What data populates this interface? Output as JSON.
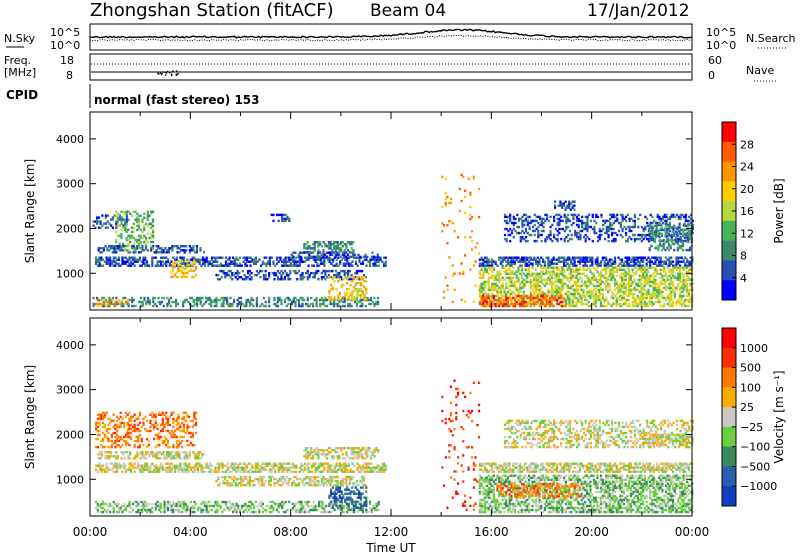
{
  "header": {
    "station": "Zhongshan Station (fitACF)",
    "beam": "Beam 04",
    "date": "17/Jan/2012"
  },
  "noise_panel": {
    "left_label": "N.Sky",
    "right_label": "N.Search",
    "scale_top": "10^5",
    "scale_bottom": "10^0"
  },
  "freq_panel": {
    "left_label_1": "Freq.",
    "left_label_2": "[MHz]",
    "left_tick_top": "18",
    "left_tick_bottom": "8",
    "right_tick_top": "60",
    "right_tick_bottom": "0",
    "right_label": "Nave"
  },
  "cpid": {
    "label": "CPID",
    "value": "normal (fast stereo) 153"
  },
  "colors": {
    "power_scale": [
      "#0000ff",
      "#2851b8",
      "#3a8a6a",
      "#49b35a",
      "#b7d640",
      "#ffcc00",
      "#ff9500",
      "#ff5a00",
      "#ff0000"
    ],
    "velocity_scale": [
      "#1040c0",
      "#2a5fb0",
      "#3a8a60",
      "#6ad040",
      "#c8c8c0",
      "#ffaa00",
      "#ff7a00",
      "#ff3000",
      "#ff0000"
    ]
  },
  "chart_data": [
    {
      "type": "heatmap",
      "name": "power",
      "ylabel": "Slant Range [km]",
      "ylim": [
        180,
        4600
      ],
      "yticks": [
        1000,
        2000,
        3000,
        4000
      ],
      "xlim": [
        0,
        24
      ],
      "colorbar_label": "Power [dB]",
      "colorbar_ticks": [
        "4",
        "8",
        "12",
        "16",
        "20",
        "24",
        "28"
      ],
      "colorbar_range": [
        0,
        32
      ],
      "bands": [
        {
          "t0": 0.2,
          "t1": 11.8,
          "r0": 1150,
          "r1": 1350,
          "level": 1,
          "density": 0.55
        },
        {
          "t0": 0.3,
          "t1": 4.5,
          "r0": 1450,
          "r1": 1600,
          "level": 1,
          "density": 0.5
        },
        {
          "t0": 0.1,
          "t1": 1.5,
          "r0": 2000,
          "r1": 2300,
          "level": 1,
          "density": 0.35
        },
        {
          "t0": 1.0,
          "t1": 2.5,
          "r0": 1500,
          "r1": 2400,
          "level": 3,
          "density": 0.35
        },
        {
          "t0": 3.2,
          "t1": 4.2,
          "r0": 900,
          "r1": 1300,
          "level": 5,
          "density": 0.4
        },
        {
          "t0": 0.1,
          "t1": 11.5,
          "r0": 250,
          "r1": 450,
          "level": 2,
          "density": 0.4
        },
        {
          "t0": 0.2,
          "t1": 1.5,
          "r0": 250,
          "r1": 400,
          "level": 6,
          "density": 0.4
        },
        {
          "t0": 5.0,
          "t1": 11.0,
          "r0": 850,
          "r1": 1050,
          "level": 1,
          "density": 0.45
        },
        {
          "t0": 8.5,
          "t1": 10.5,
          "r0": 1450,
          "r1": 1700,
          "level": 2,
          "density": 0.5
        },
        {
          "t0": 8.0,
          "t1": 11.5,
          "r0": 1350,
          "r1": 1450,
          "level": 1,
          "density": 0.45
        },
        {
          "t0": 7.2,
          "t1": 8.0,
          "r0": 2150,
          "r1": 2300,
          "level": 1,
          "density": 0.45
        },
        {
          "t0": 9.5,
          "t1": 11.0,
          "r0": 400,
          "r1": 900,
          "level": 5,
          "density": 0.35
        },
        {
          "t0": 15.5,
          "t1": 24.0,
          "r0": 1150,
          "r1": 1350,
          "level": 1,
          "density": 0.6
        },
        {
          "t0": 15.5,
          "t1": 24.0,
          "r0": 250,
          "r1": 1150,
          "level": 4,
          "density": 0.55
        },
        {
          "t0": 15.5,
          "t1": 19.0,
          "r0": 250,
          "r1": 500,
          "level": 7,
          "density": 0.5
        },
        {
          "t0": 16.5,
          "t1": 24.0,
          "r0": 1700,
          "r1": 2300,
          "level": 1,
          "density": 0.35
        },
        {
          "t0": 18.5,
          "t1": 19.3,
          "r0": 2400,
          "r1": 2600,
          "level": 1,
          "density": 0.5
        },
        {
          "t0": 22.2,
          "t1": 24.0,
          "r0": 1500,
          "r1": 2100,
          "level": 2,
          "density": 0.4
        },
        {
          "t0": 14.0,
          "t1": 15.5,
          "r0": 300,
          "r1": 3200,
          "level": 6,
          "density": 0.05
        }
      ]
    },
    {
      "type": "heatmap",
      "name": "velocity",
      "ylabel": "Slant Range [km]",
      "xlabel": "Time UT",
      "ylim": [
        180,
        4600
      ],
      "yticks": [
        1000,
        2000,
        3000,
        4000
      ],
      "xlim": [
        0,
        24
      ],
      "xticks": [
        "00:00",
        "04:00",
        "08:00",
        "12:00",
        "16:00",
        "20:00",
        "00:00"
      ],
      "colorbar_label": "Velocity [m s⁻¹]",
      "colorbar_ticks": [
        "1000",
        "500",
        "100",
        "25",
        "−25",
        "−100",
        "−500",
        "−1000"
      ],
      "bands": [
        {
          "t0": 0.2,
          "t1": 11.8,
          "r0": 1150,
          "r1": 1350,
          "level": 4,
          "density": 0.6
        },
        {
          "t0": 0.3,
          "t1": 4.5,
          "r0": 1450,
          "r1": 1600,
          "level": 4,
          "density": 0.55
        },
        {
          "t0": 0.2,
          "t1": 4.2,
          "r0": 1700,
          "r1": 2500,
          "level": 6,
          "density": 0.35
        },
        {
          "t0": 0.2,
          "t1": 11.5,
          "r0": 250,
          "r1": 500,
          "level": 3,
          "density": 0.45
        },
        {
          "t0": 5.0,
          "t1": 11.0,
          "r0": 850,
          "r1": 1050,
          "level": 4,
          "density": 0.5
        },
        {
          "t0": 8.5,
          "t1": 11.5,
          "r0": 1450,
          "r1": 1700,
          "level": 4,
          "density": 0.55
        },
        {
          "t0": 9.5,
          "t1": 11.0,
          "r0": 300,
          "r1": 800,
          "level": 1,
          "density": 0.4
        },
        {
          "t0": 15.5,
          "t1": 24.0,
          "r0": 1150,
          "r1": 1350,
          "level": 4,
          "density": 0.65
        },
        {
          "t0": 15.5,
          "t1": 24.0,
          "r0": 250,
          "r1": 1100,
          "level": 3,
          "density": 0.55
        },
        {
          "t0": 16.2,
          "t1": 19.5,
          "r0": 600,
          "r1": 900,
          "level": 6,
          "density": 0.35
        },
        {
          "t0": 16.5,
          "t1": 24.0,
          "r0": 1700,
          "r1": 2300,
          "level": 4,
          "density": 0.35
        },
        {
          "t0": 22.0,
          "t1": 24.0,
          "r0": 1750,
          "r1": 2000,
          "level": 4,
          "density": 0.6
        },
        {
          "t0": 14.0,
          "t1": 15.5,
          "r0": 300,
          "r1": 3200,
          "level": 7,
          "density": 0.05
        }
      ]
    }
  ]
}
